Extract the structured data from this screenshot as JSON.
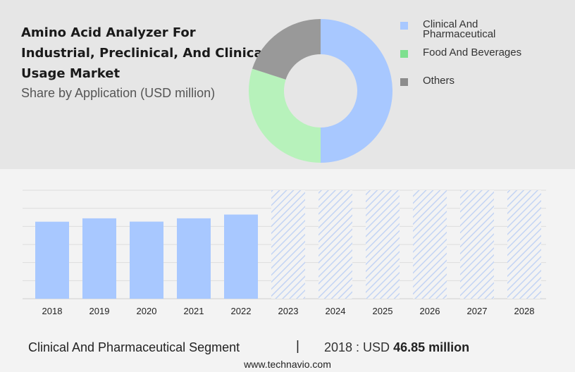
{
  "header": {
    "title": "Amino Acid Analyzer For Industrial, Preclinical, And Clinical Usage Market",
    "subtitle": "Share by Application (USD million)"
  },
  "legend": [
    {
      "label": "Clinical And Pharmaceutical",
      "color": "#a8c8ff"
    },
    {
      "label": "Food And Beverages",
      "color": "#7ee08f"
    },
    {
      "label": "Others",
      "color": "#8c8c8c"
    }
  ],
  "chart_data": [
    {
      "type": "pie",
      "variant": "donut",
      "labels": [
        "Clinical And Pharmaceutical",
        "Food And Beverages",
        "Others"
      ],
      "values": [
        50,
        30,
        20
      ],
      "colors": [
        "#a8c8ff",
        "#b7f2bb",
        "#999999"
      ]
    },
    {
      "type": "bar",
      "categories": [
        "2018",
        "2019",
        "2020",
        "2021",
        "2022",
        "2023",
        "2024",
        "2025",
        "2026",
        "2027",
        "2028"
      ],
      "values": [
        46.85,
        48.9,
        46.9,
        48.9,
        51.2,
        null,
        null,
        null,
        null,
        null,
        null
      ],
      "forecast_categories": [
        "2023",
        "2024",
        "2025",
        "2026",
        "2027",
        "2028"
      ],
      "ylim": [
        0,
        66
      ],
      "grid": true,
      "bar_color": "#a8c8ff",
      "forecast_color": "#c9d9f7"
    }
  ],
  "footer": {
    "segment": "Clinical And Pharmaceutical Segment",
    "separator": "|",
    "year_label": "2018 : USD",
    "value": "46.85 million",
    "website": "www.technavio.com"
  }
}
